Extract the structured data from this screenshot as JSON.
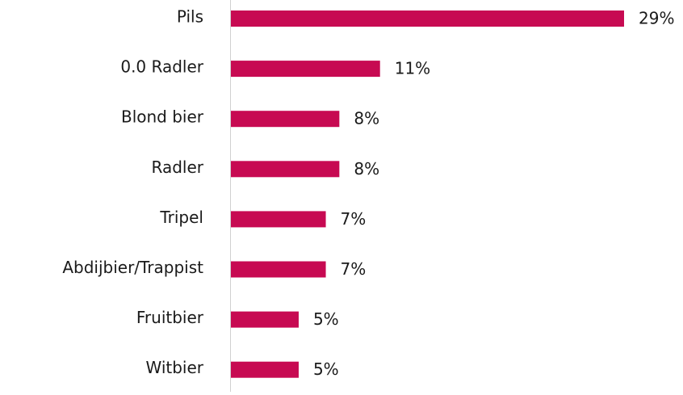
{
  "chart_data": {
    "type": "bar",
    "orientation": "horizontal",
    "categories": [
      "Pils",
      "0.0 Radler",
      "Blond bier",
      "Radler",
      "Tripel",
      "Abdijbier/Trappist",
      "Fruitbier",
      "Witbier"
    ],
    "values": [
      29,
      11,
      8,
      8,
      7,
      7,
      5,
      5
    ],
    "value_labels": [
      "29%",
      "11%",
      "8%",
      "8%",
      "7%",
      "7%",
      "5%",
      "5%"
    ],
    "color": "#c70a52"
  }
}
